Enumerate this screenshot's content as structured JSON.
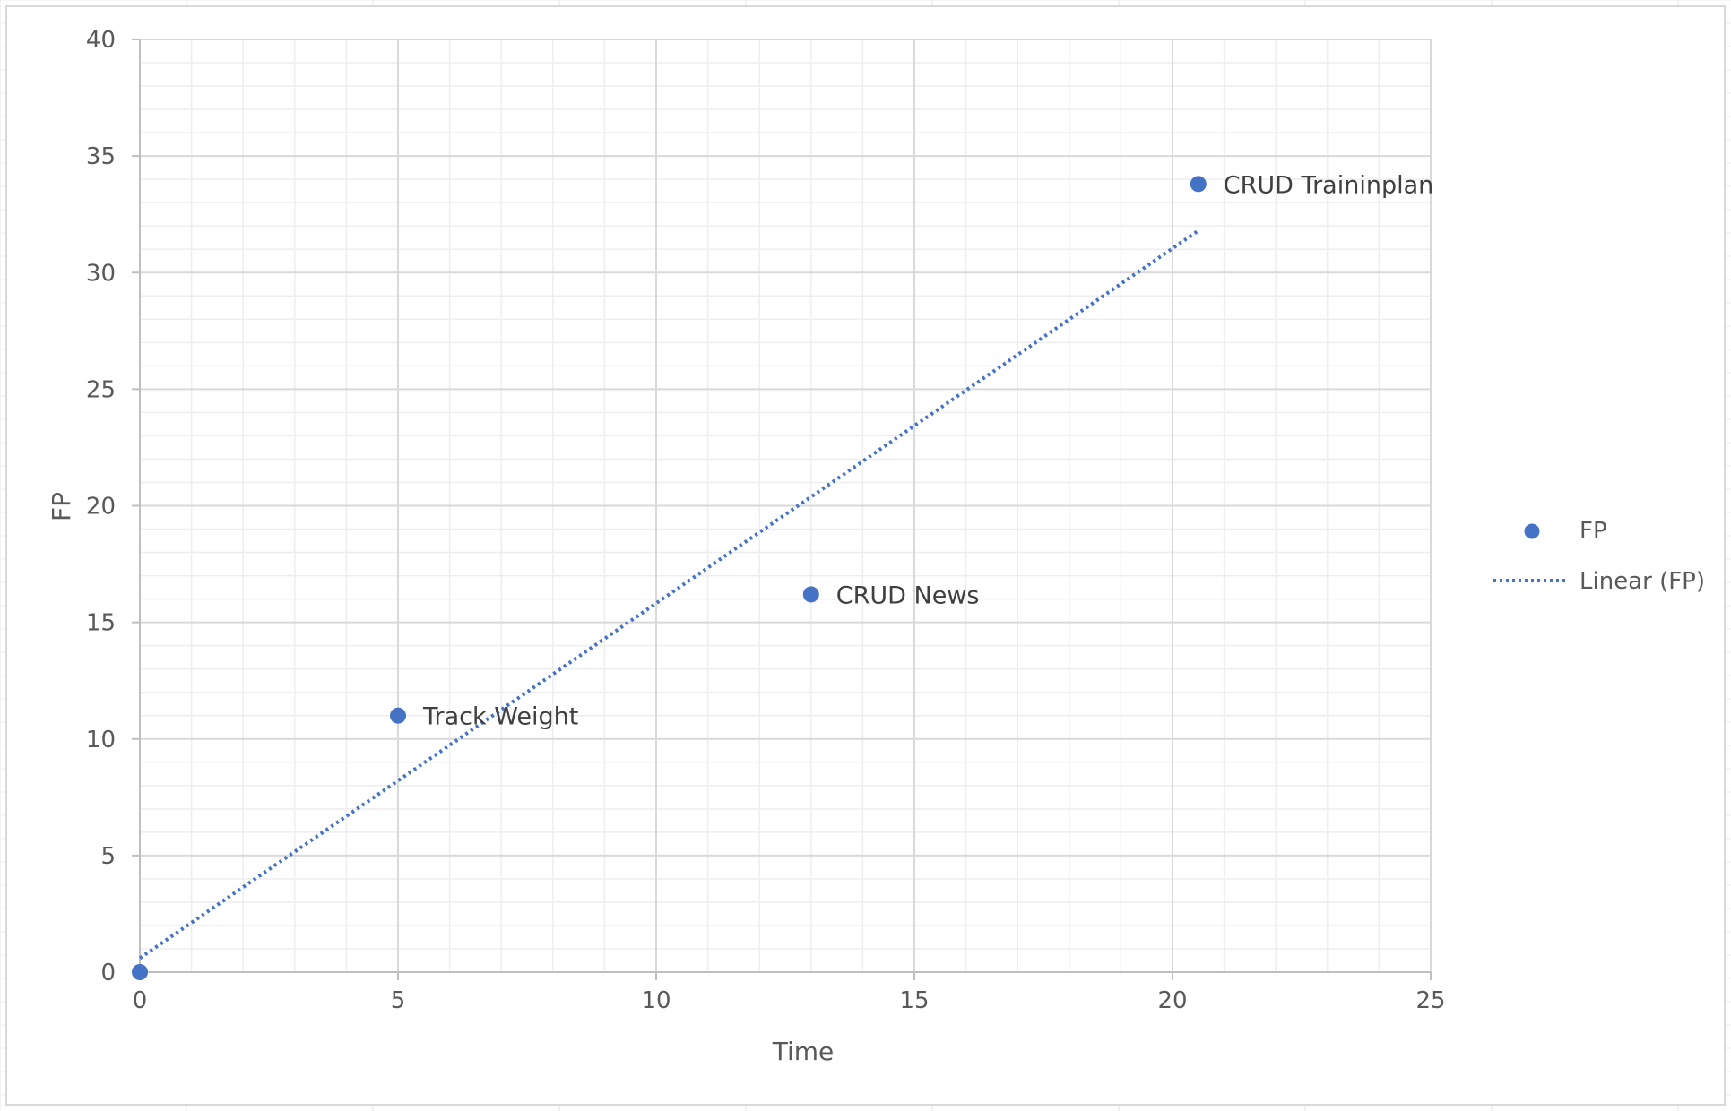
{
  "chart_data": {
    "type": "scatter",
    "title": "",
    "xlabel": "Time",
    "ylabel": "FP",
    "xlim": [
      0,
      25
    ],
    "ylim": [
      0,
      40
    ],
    "x_ticks": [
      0,
      5,
      10,
      15,
      20,
      25
    ],
    "y_ticks": [
      0,
      5,
      10,
      15,
      20,
      25,
      30,
      35,
      40
    ],
    "grid": "major and minor",
    "legend_position": "right",
    "series": [
      {
        "name": "FP",
        "color": "#4472C4",
        "marker": "circle",
        "points": [
          {
            "x": 0,
            "y": 0,
            "label": ""
          },
          {
            "x": 5,
            "y": 11,
            "label": "Track Weight"
          },
          {
            "x": 13,
            "y": 16.2,
            "label": "CRUD News"
          },
          {
            "x": 20.5,
            "y": 33.8,
            "label": "CRUD Traininplan"
          }
        ]
      }
    ],
    "trendline": {
      "name": "Linear (FP)",
      "type": "linear",
      "style": "dotted",
      "color": "#4472C4",
      "x_range": [
        0,
        20.5
      ],
      "y_range": [
        0.6,
        31.8
      ]
    }
  }
}
